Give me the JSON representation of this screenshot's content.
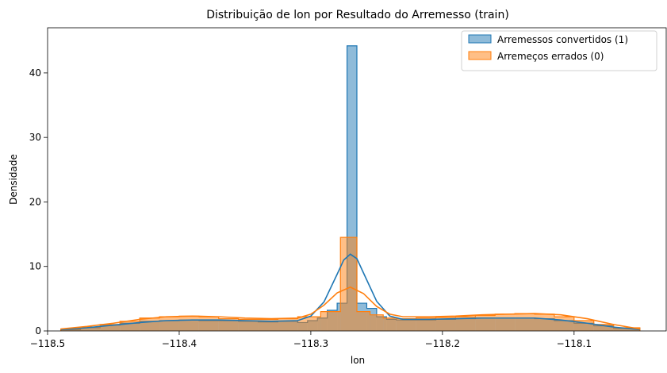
{
  "chart_data": {
    "type": "histogram",
    "title": "Distribuição de lon por Resultado do Arremesso (train)",
    "xlabel": "lon",
    "ylabel": "Densidade",
    "xlim": [
      -118.5,
      -118.03
    ],
    "ylim": [
      0,
      47
    ],
    "xticks": [
      {
        "value": -118.5,
        "label": "−118.5"
      },
      {
        "value": -118.4,
        "label": "−118.4"
      },
      {
        "value": -118.3,
        "label": "−118.3"
      },
      {
        "value": -118.2,
        "label": "−118.2"
      },
      {
        "value": -118.1,
        "label": "−118.1"
      }
    ],
    "yticks": [
      {
        "value": 0,
        "label": "0"
      },
      {
        "value": 10,
        "label": "10"
      },
      {
        "value": 20,
        "label": "20"
      },
      {
        "value": 30,
        "label": "30"
      },
      {
        "value": 40,
        "label": "40"
      }
    ],
    "legend_position": "top-right",
    "series": [
      {
        "name": "Arremessos convertidos (1)",
        "color": "#1f77b4",
        "fill": "rgba(31,119,180,0.5)",
        "bin_edges": [
          -118.49,
          -118.475,
          -118.46,
          -118.445,
          -118.43,
          -118.415,
          -118.4,
          -118.385,
          -118.37,
          -118.355,
          -118.34,
          -118.325,
          -118.31,
          -118.3025,
          -118.295,
          -118.2875,
          -118.28,
          -118.2725,
          -118.265,
          -118.2575,
          -118.25,
          -118.2425,
          -118.235,
          -118.22,
          -118.205,
          -118.19,
          -118.175,
          -118.16,
          -118.145,
          -118.13,
          -118.115,
          -118.1,
          -118.085,
          -118.07,
          -118.05
        ],
        "densities": [
          0.2,
          0.5,
          0.9,
          1.2,
          1.5,
          1.6,
          1.7,
          1.6,
          1.6,
          1.5,
          1.4,
          1.5,
          1.3,
          1.6,
          2.0,
          3.2,
          4.3,
          44.2,
          4.3,
          3.5,
          2.2,
          1.8,
          1.7,
          1.7,
          1.8,
          1.9,
          2.0,
          2.0,
          2.0,
          1.9,
          1.6,
          1.2,
          0.8,
          0.4
        ],
        "kde_x": [
          -118.49,
          -118.47,
          -118.45,
          -118.43,
          -118.41,
          -118.39,
          -118.37,
          -118.35,
          -118.33,
          -118.31,
          -118.3,
          -118.29,
          -118.28,
          -118.275,
          -118.27,
          -118.265,
          -118.26,
          -118.25,
          -118.24,
          -118.23,
          -118.21,
          -118.19,
          -118.17,
          -118.15,
          -118.13,
          -118.11,
          -118.09,
          -118.07,
          -118.05
        ],
        "kde_y": [
          0.2,
          0.5,
          0.9,
          1.3,
          1.6,
          1.7,
          1.7,
          1.6,
          1.5,
          1.6,
          2.3,
          4.5,
          8.8,
          11.0,
          11.9,
          11.2,
          9.0,
          4.6,
          2.3,
          1.8,
          1.8,
          1.9,
          2.0,
          2.0,
          2.0,
          1.7,
          1.2,
          0.6,
          0.2
        ]
      },
      {
        "name": "Arremeços errados (0)",
        "color": "#ff7f0e",
        "fill": "rgba(255,127,14,0.5)",
        "bin_edges": [
          -118.49,
          -118.475,
          -118.46,
          -118.445,
          -118.43,
          -118.415,
          -118.4,
          -118.385,
          -118.37,
          -118.355,
          -118.34,
          -118.325,
          -118.31,
          -118.2925,
          -118.2775,
          -118.265,
          -118.255,
          -118.245,
          -118.235,
          -118.22,
          -118.205,
          -118.19,
          -118.175,
          -118.16,
          -118.145,
          -118.13,
          -118.115,
          -118.1,
          -118.085,
          -118.07,
          -118.05
        ],
        "densities": [
          0.3,
          0.6,
          1.0,
          1.5,
          2.0,
          2.2,
          2.3,
          2.2,
          1.9,
          1.8,
          1.8,
          1.9,
          2.2,
          3.0,
          14.5,
          3.0,
          2.5,
          2.0,
          1.9,
          2.0,
          2.1,
          2.2,
          2.4,
          2.6,
          2.7,
          2.6,
          2.2,
          1.6,
          1.0,
          0.5
        ],
        "kde_x": [
          -118.49,
          -118.47,
          -118.45,
          -118.43,
          -118.41,
          -118.39,
          -118.37,
          -118.35,
          -118.33,
          -118.31,
          -118.3,
          -118.29,
          -118.28,
          -118.27,
          -118.26,
          -118.25,
          -118.24,
          -118.23,
          -118.21,
          -118.19,
          -118.17,
          -118.15,
          -118.13,
          -118.11,
          -118.09,
          -118.07,
          -118.05
        ],
        "kde_y": [
          0.3,
          0.7,
          1.2,
          1.8,
          2.2,
          2.3,
          2.2,
          2.0,
          1.9,
          2.0,
          2.6,
          4.0,
          5.9,
          6.8,
          5.8,
          3.8,
          2.6,
          2.2,
          2.2,
          2.3,
          2.5,
          2.6,
          2.7,
          2.5,
          1.9,
          1.0,
          0.3
        ]
      }
    ]
  }
}
